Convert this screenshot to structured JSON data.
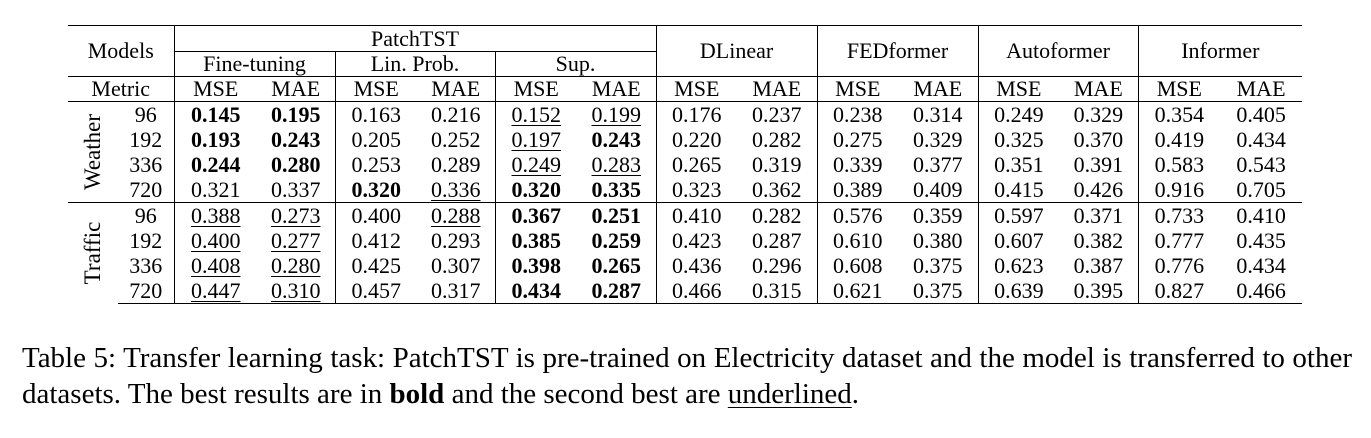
{
  "table": {
    "models_label": "Models",
    "metric_label": "Metric",
    "patchtst_label": "PatchTST",
    "patchtst_subs": [
      "Fine-tuning",
      "Lin. Prob.",
      "Sup."
    ],
    "baselines": [
      "DLinear",
      "FEDformer",
      "Autoformer",
      "Informer"
    ],
    "metric_names": [
      "MSE",
      "MAE",
      "MSE",
      "MAE",
      "MSE",
      "MAE",
      "MSE",
      "MAE",
      "MSE",
      "MAE",
      "MSE",
      "MAE",
      "MSE",
      "MAE"
    ],
    "groups": [
      {
        "name": "Weather",
        "rows": [
          {
            "horizon": "96",
            "cells": [
              {
                "v": "0.145",
                "s": "b"
              },
              {
                "v": "0.195",
                "s": "b"
              },
              {
                "v": "0.163"
              },
              {
                "v": "0.216"
              },
              {
                "v": "0.152",
                "s": "u"
              },
              {
                "v": "0.199",
                "s": "u"
              },
              {
                "v": "0.176"
              },
              {
                "v": "0.237"
              },
              {
                "v": "0.238"
              },
              {
                "v": "0.314"
              },
              {
                "v": "0.249"
              },
              {
                "v": "0.329"
              },
              {
                "v": "0.354"
              },
              {
                "v": "0.405"
              }
            ]
          },
          {
            "horizon": "192",
            "cells": [
              {
                "v": "0.193",
                "s": "b"
              },
              {
                "v": "0.243",
                "s": "b"
              },
              {
                "v": "0.205"
              },
              {
                "v": "0.252"
              },
              {
                "v": "0.197",
                "s": "u"
              },
              {
                "v": "0.243",
                "s": "b"
              },
              {
                "v": "0.220"
              },
              {
                "v": "0.282"
              },
              {
                "v": "0.275"
              },
              {
                "v": "0.329"
              },
              {
                "v": "0.325"
              },
              {
                "v": "0.370"
              },
              {
                "v": "0.419"
              },
              {
                "v": "0.434"
              }
            ]
          },
          {
            "horizon": "336",
            "cells": [
              {
                "v": "0.244",
                "s": "b"
              },
              {
                "v": "0.280",
                "s": "b"
              },
              {
                "v": "0.253"
              },
              {
                "v": "0.289"
              },
              {
                "v": "0.249",
                "s": "u"
              },
              {
                "v": "0.283",
                "s": "u"
              },
              {
                "v": "0.265"
              },
              {
                "v": "0.319"
              },
              {
                "v": "0.339"
              },
              {
                "v": "0.377"
              },
              {
                "v": "0.351"
              },
              {
                "v": "0.391"
              },
              {
                "v": "0.583"
              },
              {
                "v": "0.543"
              }
            ]
          },
          {
            "horizon": "720",
            "cells": [
              {
                "v": "0.321"
              },
              {
                "v": "0.337"
              },
              {
                "v": "0.320",
                "s": "b"
              },
              {
                "v": "0.336",
                "s": "u"
              },
              {
                "v": "0.320",
                "s": "b"
              },
              {
                "v": "0.335",
                "s": "b"
              },
              {
                "v": "0.323"
              },
              {
                "v": "0.362"
              },
              {
                "v": "0.389"
              },
              {
                "v": "0.409"
              },
              {
                "v": "0.415"
              },
              {
                "v": "0.426"
              },
              {
                "v": "0.916"
              },
              {
                "v": "0.705"
              }
            ]
          }
        ]
      },
      {
        "name": "Traffic",
        "rows": [
          {
            "horizon": "96",
            "cells": [
              {
                "v": "0.388",
                "s": "u"
              },
              {
                "v": "0.273",
                "s": "u"
              },
              {
                "v": "0.400"
              },
              {
                "v": "0.288",
                "s": "u"
              },
              {
                "v": "0.367",
                "s": "b"
              },
              {
                "v": "0.251",
                "s": "b"
              },
              {
                "v": "0.410"
              },
              {
                "v": "0.282"
              },
              {
                "v": "0.576"
              },
              {
                "v": "0.359"
              },
              {
                "v": "0.597"
              },
              {
                "v": "0.371"
              },
              {
                "v": "0.733"
              },
              {
                "v": "0.410"
              }
            ]
          },
          {
            "horizon": "192",
            "cells": [
              {
                "v": "0.400",
                "s": "u"
              },
              {
                "v": "0.277",
                "s": "u"
              },
              {
                "v": "0.412"
              },
              {
                "v": "0.293"
              },
              {
                "v": "0.385",
                "s": "b"
              },
              {
                "v": "0.259",
                "s": "b"
              },
              {
                "v": "0.423"
              },
              {
                "v": "0.287"
              },
              {
                "v": "0.610"
              },
              {
                "v": "0.380"
              },
              {
                "v": "0.607"
              },
              {
                "v": "0.382"
              },
              {
                "v": "0.777"
              },
              {
                "v": "0.435"
              }
            ]
          },
          {
            "horizon": "336",
            "cells": [
              {
                "v": "0.408",
                "s": "u"
              },
              {
                "v": "0.280",
                "s": "u"
              },
              {
                "v": "0.425"
              },
              {
                "v": "0.307"
              },
              {
                "v": "0.398",
                "s": "b"
              },
              {
                "v": "0.265",
                "s": "b"
              },
              {
                "v": "0.436"
              },
              {
                "v": "0.296"
              },
              {
                "v": "0.608"
              },
              {
                "v": "0.375"
              },
              {
                "v": "0.623"
              },
              {
                "v": "0.387"
              },
              {
                "v": "0.776"
              },
              {
                "v": "0.434"
              }
            ]
          },
          {
            "horizon": "720",
            "cells": [
              {
                "v": "0.447",
                "s": "u"
              },
              {
                "v": "0.310",
                "s": "u"
              },
              {
                "v": "0.457"
              },
              {
                "v": "0.317"
              },
              {
                "v": "0.434",
                "s": "b"
              },
              {
                "v": "0.287",
                "s": "b"
              },
              {
                "v": "0.466"
              },
              {
                "v": "0.315"
              },
              {
                "v": "0.621"
              },
              {
                "v": "0.375"
              },
              {
                "v": "0.639"
              },
              {
                "v": "0.395"
              },
              {
                "v": "0.827"
              },
              {
                "v": "0.466"
              }
            ]
          }
        ]
      }
    ]
  },
  "caption": {
    "part1": "Table 5: Transfer learning task: PatchTST is pre-trained on Electricity dataset and the model is transferred to other datasets. The best results are in ",
    "bold_word": "bold",
    "part2": " and the second best are ",
    "underlined_word": "underlined",
    "part3": "."
  }
}
